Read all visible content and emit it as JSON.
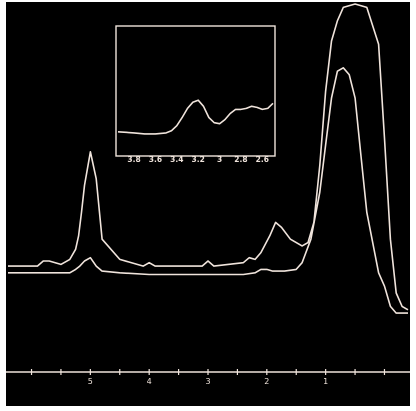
{
  "colors": {
    "background": "#000000",
    "frame": "#ffffff",
    "trace": "#f0e4dc"
  },
  "chart_data": [
    {
      "type": "line",
      "panel": "main",
      "xlabel": "",
      "ylabel": "",
      "x_direction": "descending",
      "xlim": [
        6.9,
        0.1
      ],
      "ylim": [
        0,
        100
      ],
      "grid": false,
      "legend": "none",
      "x_ticks": [
        0.0,
        0.5,
        1.0,
        1.5,
        2.0,
        2.5,
        3.0,
        3.5,
        4.0,
        4.5,
        5.0,
        5.5,
        6.0,
        6.5
      ],
      "x_tick_labels": [
        {
          "x": 5.5,
          "text": "5"
        },
        {
          "x": 4.5,
          "text": "4"
        },
        {
          "x": 3.5,
          "text": "3"
        },
        {
          "x": 2.5,
          "text": "2"
        },
        {
          "x": 1.5,
          "text": "1"
        }
      ],
      "series": [
        {
          "x": [
            6.9,
            6.4,
            6.3,
            6.2,
            6.0,
            5.85,
            5.75,
            5.7,
            5.65,
            5.6,
            5.5,
            5.4,
            5.3,
            5.0,
            4.6,
            4.5,
            4.4,
            3.9,
            3.6,
            3.5,
            3.4,
            2.9,
            2.8,
            2.7,
            2.6,
            2.45,
            2.35,
            2.25,
            2.1,
            1.9,
            1.8,
            1.7,
            1.6,
            1.5,
            1.4,
            1.3,
            1.2,
            1.0,
            0.8,
            0.6,
            0.5,
            0.4,
            0.3,
            0.2,
            0.1
          ],
          "y": [
            22,
            22,
            23.5,
            23.5,
            22.5,
            24,
            27,
            31,
            38,
            46,
            56,
            48,
            30,
            24,
            22,
            23,
            22,
            22,
            22,
            23.5,
            22,
            23,
            24.5,
            24,
            26,
            31,
            35,
            33.5,
            30,
            28,
            29,
            35,
            52,
            74,
            89,
            95,
            99,
            100,
            99,
            88,
            60,
            30,
            14,
            10,
            9
          ]
        },
        {
          "x": [
            6.9,
            6.0,
            5.85,
            5.75,
            5.68,
            5.6,
            5.5,
            5.4,
            5.3,
            5.0,
            4.5,
            3.5,
            2.9,
            2.7,
            2.6,
            2.5,
            2.4,
            2.3,
            2.2,
            2.0,
            1.9,
            1.75,
            1.6,
            1.5,
            1.4,
            1.3,
            1.2,
            1.1,
            1.0,
            0.9,
            0.8,
            0.6,
            0.5,
            0.4,
            0.3,
            0.2,
            0.1
          ],
          "y": [
            20,
            20,
            20,
            21,
            22,
            23.5,
            24.5,
            22,
            20.5,
            20,
            19.5,
            19.5,
            19.5,
            20,
            21,
            21,
            20.5,
            20.5,
            20.5,
            21,
            23,
            30,
            44,
            58,
            72,
            80,
            81,
            79,
            72,
            55,
            38,
            20,
            16,
            10,
            8,
            8,
            8
          ]
        }
      ]
    },
    {
      "type": "line",
      "panel": "inset",
      "xlabel": "",
      "ylabel": "",
      "x_direction": "descending",
      "xlim": [
        3.95,
        2.5
      ],
      "ylim": [
        0,
        100
      ],
      "grid": false,
      "legend": "none",
      "x_tick_labels": [
        {
          "x": 3.8,
          "text": "3.8"
        },
        {
          "x": 3.6,
          "text": "3.6"
        },
        {
          "x": 3.4,
          "text": "3.4"
        },
        {
          "x": 3.2,
          "text": "3.2"
        },
        {
          "x": 3.0,
          "text": "3"
        },
        {
          "x": 2.8,
          "text": "2.8"
        },
        {
          "x": 2.6,
          "text": "2.6"
        }
      ],
      "series": [
        {
          "x": [
            3.95,
            3.8,
            3.7,
            3.6,
            3.5,
            3.45,
            3.4,
            3.35,
            3.3,
            3.25,
            3.2,
            3.15,
            3.1,
            3.05,
            3.0,
            2.95,
            2.9,
            2.85,
            2.8,
            2.75,
            2.7,
            2.65,
            2.6,
            2.55,
            2.5
          ],
          "y": [
            8,
            7,
            6,
            6,
            7,
            9,
            14,
            22,
            31,
            37,
            39,
            33,
            22,
            17,
            16,
            20,
            26,
            30,
            30,
            31,
            33,
            32,
            30,
            31,
            36
          ]
        }
      ]
    }
  ]
}
